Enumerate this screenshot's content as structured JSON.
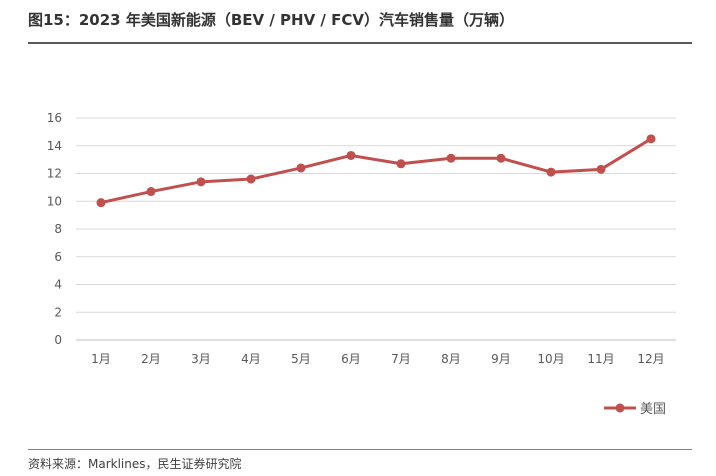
{
  "title": "图15：2023 年美国新能源（BEV / PHV / FCV）汽车销售量（万辆）",
  "source": "资料来源：Marklines，民生证券研究院",
  "colors": {
    "series": "#c0504d",
    "grid": "#d9d9d9",
    "axis": "#bfbfbf",
    "text": "#595959"
  },
  "chart_data": {
    "type": "line",
    "title": "",
    "xlabel": "",
    "ylabel": "",
    "categories": [
      "1月",
      "2月",
      "3月",
      "4月",
      "5月",
      "6月",
      "7月",
      "8月",
      "9月",
      "10月",
      "11月",
      "12月"
    ],
    "ylim": [
      0,
      16
    ],
    "yticks": [
      0,
      2,
      4,
      6,
      8,
      10,
      12,
      14,
      16
    ],
    "grid": true,
    "legend_position": "bottom-right",
    "series": [
      {
        "name": "美国",
        "values": [
          9.9,
          10.7,
          11.4,
          11.6,
          12.4,
          13.3,
          12.7,
          13.1,
          13.1,
          12.1,
          12.3,
          14.5
        ]
      }
    ]
  }
}
